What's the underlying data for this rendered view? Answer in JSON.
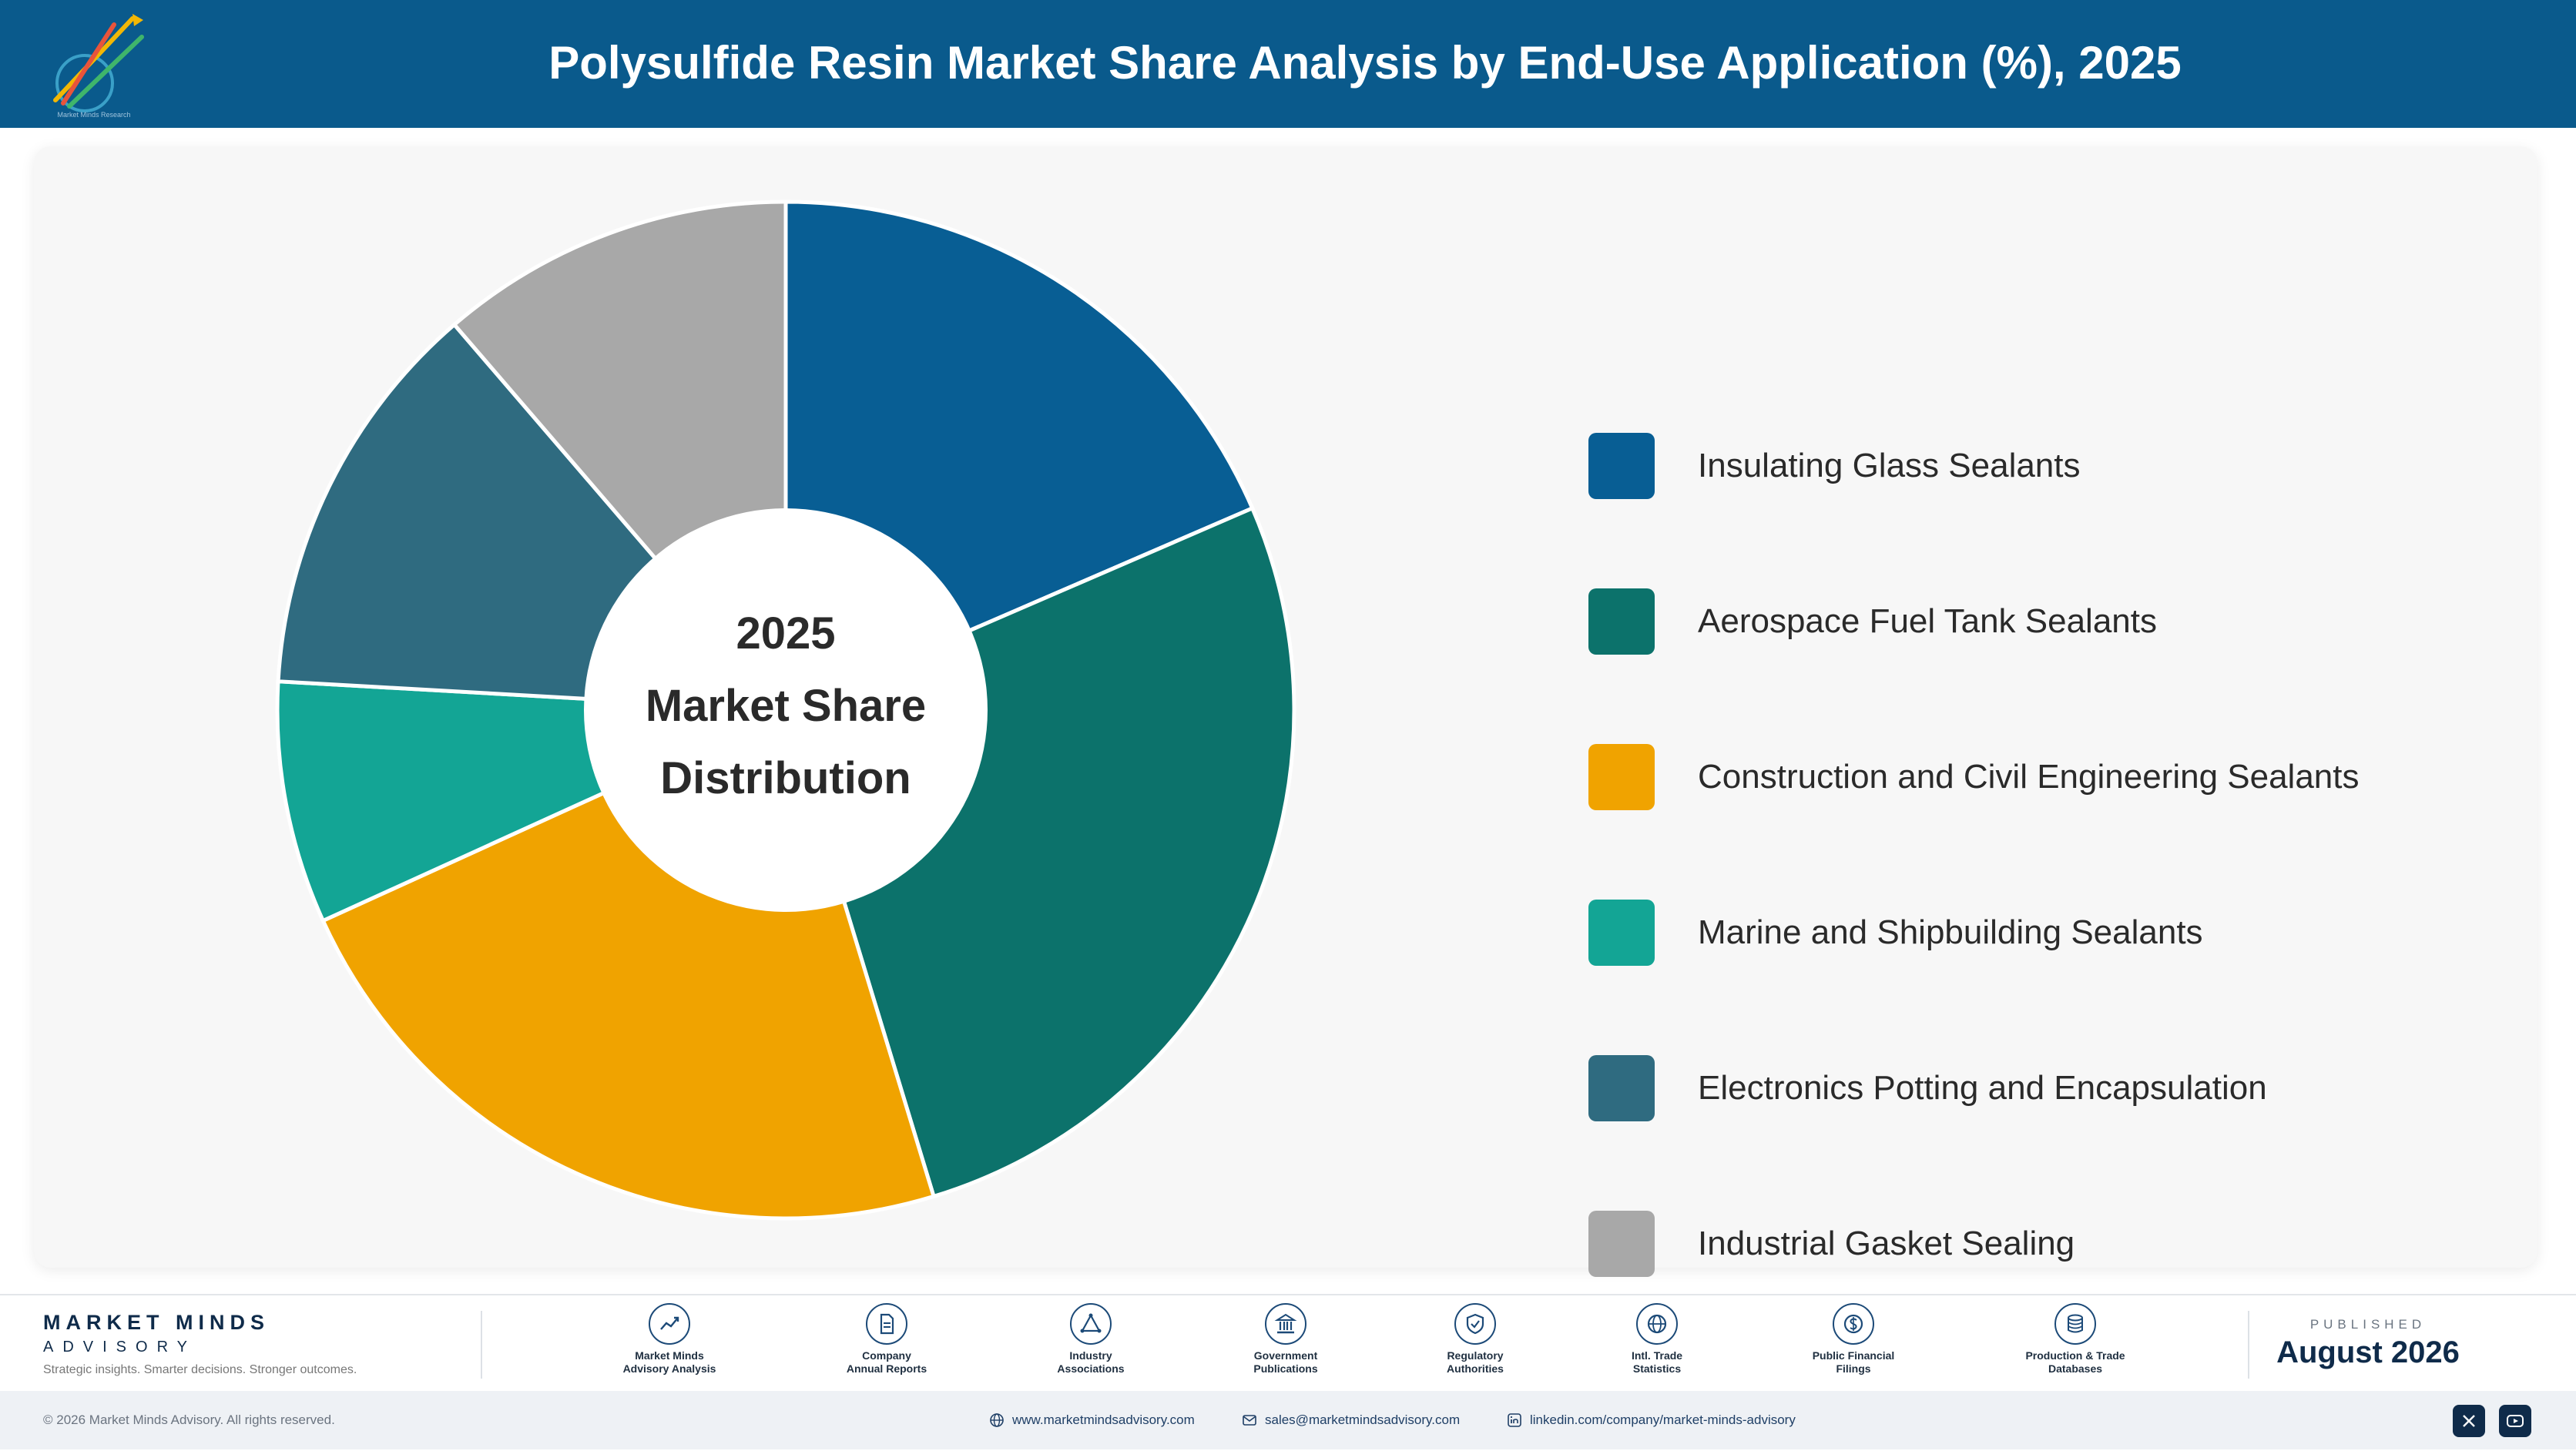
{
  "header": {
    "title": "Polysulfide Resin Market Share Analysis by End-Use Application (%), 2025",
    "logo_text": "Market Minds Research"
  },
  "chart_data": {
    "type": "pie",
    "title": "Polysulfide Resin Market Share Analysis by End-Use Application (%), 2025",
    "center_label": [
      "2025",
      "Market Share",
      "Distribution"
    ],
    "legend_position": "right",
    "categories": [
      "Insulating Glass Sealants",
      "Aerospace Fuel Tank Sealants",
      "Construction and Civil Engineering Sealants",
      "Marine and Shipbuilding Sealants",
      "Electronics Potting and Encapsulation",
      "Industrial Gasket Sealing"
    ],
    "values": [
      18.5,
      26.8,
      22.9,
      7.7,
      12.8,
      11.3
    ],
    "colors": [
      "#085e94",
      "#0c726b",
      "#f0a300",
      "#13a595",
      "#2f6b80",
      "#a8a8a8"
    ]
  },
  "footer": {
    "brand_name": "MARKET MINDS",
    "brand_sub": "ADVISORY",
    "brand_tag": "Strategic insights. Smarter decisions. Stronger outcomes.",
    "sources": [
      {
        "label": "Market Minds\nAdvisory Analysis",
        "icon": "chart-trend-icon"
      },
      {
        "label": "Company\nAnnual Reports",
        "icon": "document-icon"
      },
      {
        "label": "Industry\nAssociations",
        "icon": "network-icon"
      },
      {
        "label": "Government\nPublications",
        "icon": "government-building-icon"
      },
      {
        "label": "Regulatory\nAuthorities",
        "icon": "shield-check-icon"
      },
      {
        "label": "Intl. Trade\nStatistics",
        "icon": "globe-icon"
      },
      {
        "label": "Public Financial\nFilings",
        "icon": "dollar-coin-icon"
      },
      {
        "label": "Production & Trade\nDatabases",
        "icon": "database-icon"
      }
    ],
    "published_label": "PUBLISHED",
    "published_value": "August 2026",
    "copyright": "© 2026 Market Minds Advisory. All rights reserved.",
    "website": "www.marketmindsadvisory.com",
    "email": "sales@marketmindsadvisory.com",
    "linkedin": "linkedin.com/company/market-minds-advisory"
  }
}
